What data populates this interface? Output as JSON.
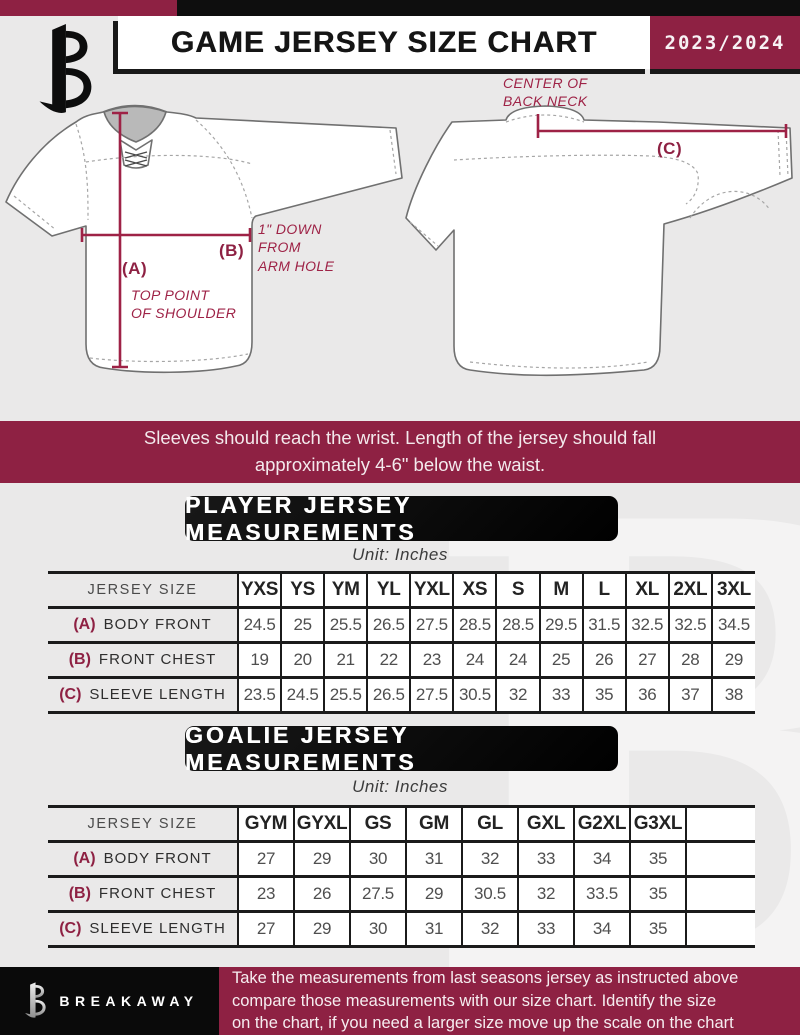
{
  "header": {
    "title": "GAME JERSEY SIZE CHART",
    "season": "2023/2024"
  },
  "diagram": {
    "front": {
      "a_label": "(A)",
      "a_note_line1": "TOP POINT",
      "a_note_line2": "OF SHOULDER",
      "b_label": "(B)",
      "b_note_line1": "1\" DOWN",
      "b_note_line2": "FROM",
      "b_note_line3": "ARM HOLE"
    },
    "back": {
      "neck_note_line1": "CENTER OF",
      "neck_note_line2": "BACK NECK",
      "c_label": "(C)"
    }
  },
  "notice": {
    "line1": "Sleeves should reach the wrist. Length of the jersey should fall",
    "line2": "approximately 4-6\" below the waist."
  },
  "player_section": {
    "title": "PLAYER JERSEY MEASUREMENTS",
    "unit": "Unit: Inches"
  },
  "goalie_section": {
    "title": "GOALIE JERSEY MEASUREMENTS",
    "unit": "Unit: Inches"
  },
  "player_table": {
    "label_header": "JERSEY SIZE",
    "sizes": [
      "YXS",
      "YS",
      "YM",
      "YL",
      "YXL",
      "XS",
      "S",
      "M",
      "L",
      "XL",
      "2XL",
      "3XL"
    ],
    "trailing_empty": false,
    "rows": [
      {
        "key": "(A)",
        "label": "BODY FRONT",
        "values": [
          "24.5",
          "25",
          "25.5",
          "26.5",
          "27.5",
          "28.5",
          "28.5",
          "29.5",
          "31.5",
          "32.5",
          "32.5",
          "34.5"
        ]
      },
      {
        "key": "(B)",
        "label": "FRONT CHEST",
        "values": [
          "19",
          "20",
          "21",
          "22",
          "23",
          "24",
          "24",
          "25",
          "26",
          "27",
          "28",
          "29"
        ]
      },
      {
        "key": "(C)",
        "label": "SLEEVE LENGTH",
        "values": [
          "23.5",
          "24.5",
          "25.5",
          "26.5",
          "27.5",
          "30.5",
          "32",
          "33",
          "35",
          "36",
          "37",
          "38"
        ]
      }
    ]
  },
  "goalie_table": {
    "label_header": "JERSEY SIZE",
    "sizes": [
      "GYM",
      "GYXL",
      "GS",
      "GM",
      "GL",
      "GXL",
      "G2XL",
      "G3XL"
    ],
    "trailing_empty": true,
    "rows": [
      {
        "key": "(A)",
        "label": "BODY FRONT",
        "values": [
          "27",
          "29",
          "30",
          "31",
          "32",
          "33",
          "34",
          "35"
        ]
      },
      {
        "key": "(B)",
        "label": "FRONT CHEST",
        "values": [
          "23",
          "26",
          "27.5",
          "29",
          "30.5",
          "32",
          "33.5",
          "35"
        ]
      },
      {
        "key": "(C)",
        "label": "SLEEVE LENGTH",
        "values": [
          "27",
          "29",
          "30",
          "31",
          "32",
          "33",
          "34",
          "35"
        ]
      }
    ]
  },
  "footer": {
    "wordmark": "BREAKAWAY",
    "note_line1": "Take the measurements from last seasons jersey as instructed above",
    "note_line2": "compare those measurements  with our size chart. Identify the size",
    "note_line3": "on the chart, if you need a larger size move up the scale on the chart"
  },
  "watermark_letter": "B",
  "colors": {
    "maroon": "#8e2143",
    "annotation": "#9e2246",
    "black": "#0e0e0e",
    "background": "#eae9e9"
  }
}
